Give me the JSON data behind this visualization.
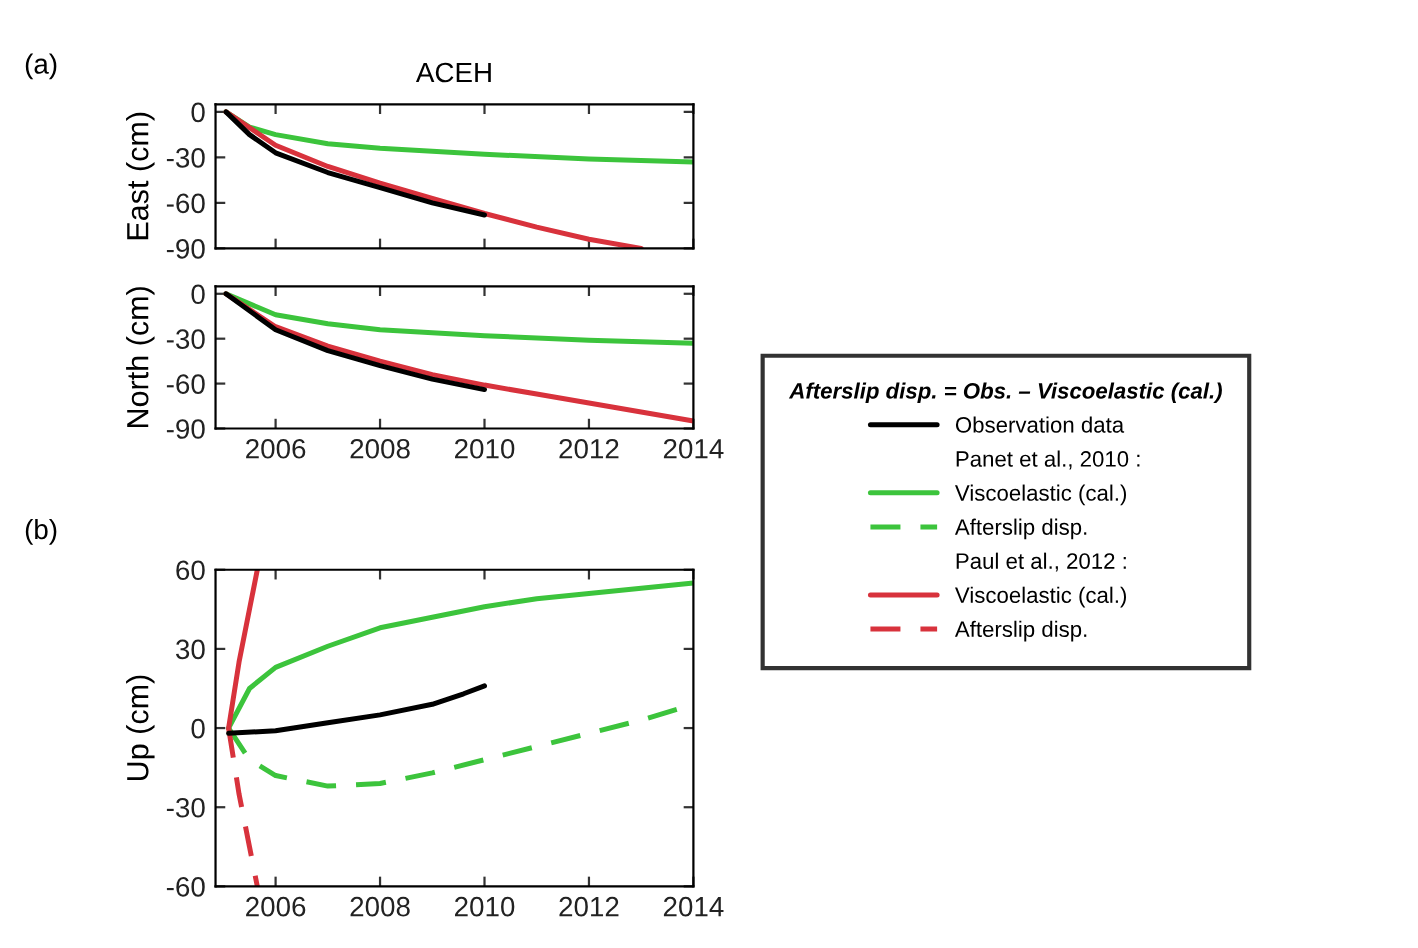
{
  "chart_data": [
    {
      "type": "line",
      "title": "ACEH",
      "ylabel": "East (cm)",
      "annotations": [
        "(a)"
      ],
      "xlim": [
        2004.85,
        2014
      ],
      "xticks": [
        2006,
        2008,
        2010,
        2012,
        2014
      ],
      "ylim": [
        -90,
        5
      ],
      "yticks": [
        -90,
        -60,
        -30,
        0
      ],
      "tick_labels": "y",
      "grid": false,
      "legend": false,
      "series": [
        {
          "color": "#000000",
          "line_style": "solid",
          "x": [
            2005.05,
            2005.5,
            2006,
            2007,
            2008,
            2009,
            2010
          ],
          "values": [
            0,
            -15,
            -27,
            -40,
            -50,
            -60,
            -68
          ]
        },
        {
          "color": "#3cc43c",
          "line_style": "solid",
          "x": [
            2005.05,
            2005.5,
            2006,
            2007,
            2008,
            2010,
            2012,
            2014
          ],
          "values": [
            0,
            -10,
            -15,
            -21,
            -24,
            -28,
            -31,
            -33
          ]
        },
        {
          "color": "#d8323c",
          "line_style": "solid",
          "x": [
            2005.05,
            2006,
            2007,
            2008,
            2009,
            2010,
            2011,
            2012,
            2013
          ],
          "values": [
            0,
            -22,
            -36,
            -47,
            -57,
            -67,
            -76,
            -84,
            -90
          ]
        }
      ]
    },
    {
      "type": "line",
      "ylabel": "North (cm)",
      "xlim": [
        2004.85,
        2014
      ],
      "xticks": [
        2006,
        2008,
        2010,
        2012,
        2014
      ],
      "ylim": [
        -90,
        5
      ],
      "yticks": [
        -90,
        -60,
        -30,
        0
      ],
      "grid": false,
      "legend": false,
      "series": [
        {
          "color": "#000000",
          "line_style": "solid",
          "x": [
            2005.05,
            2006,
            2007,
            2008,
            2009,
            2010
          ],
          "values": [
            0,
            -24,
            -38,
            -48,
            -57,
            -64
          ]
        },
        {
          "color": "#3cc43c",
          "line_style": "solid",
          "x": [
            2005.05,
            2006,
            2007,
            2008,
            2010,
            2012,
            2014
          ],
          "values": [
            0,
            -14,
            -20,
            -24,
            -28,
            -31,
            -33
          ]
        },
        {
          "color": "#d8323c",
          "line_style": "solid",
          "x": [
            2005.05,
            2006,
            2007,
            2008,
            2009,
            2010,
            2011,
            2012,
            2013,
            2014
          ],
          "values": [
            0,
            -22,
            -35,
            -45,
            -54,
            -61,
            -67,
            -73,
            -79,
            -85
          ]
        }
      ]
    },
    {
      "type": "line",
      "ylabel": "Up (cm)",
      "annotations": [
        "(b)",
        "Panet et al., 2010 :",
        "Paul et al., 2012 :"
      ],
      "legend_title": "Afterslip disp. = Obs. – Viscoelastic (cal.)",
      "xlim": [
        2004.85,
        2014
      ],
      "xticks": [
        2006,
        2008,
        2010,
        2012,
        2014
      ],
      "ylim": [
        -60,
        60
      ],
      "yticks": [
        -60,
        -30,
        0,
        30,
        60
      ],
      "grid": false,
      "legend": "right",
      "series": [
        {
          "name": "Observation data",
          "color": "#000000",
          "line_style": "solid",
          "x": [
            2005.1,
            2006,
            2007,
            2008,
            2009,
            2009.6,
            2010
          ],
          "values": [
            -2,
            -1,
            2,
            5,
            9,
            13,
            16
          ]
        },
        {
          "name": "Viscoelastic (cal.)",
          "color": "#3cc43c",
          "line_style": "solid",
          "x": [
            2005.1,
            2005.5,
            2006,
            2007,
            2008,
            2009,
            2010,
            2011,
            2012,
            2013,
            2014
          ],
          "values": [
            0,
            15,
            23,
            31,
            38,
            42,
            46,
            49,
            51,
            53,
            55
          ]
        },
        {
          "name": "Afterslip disp.",
          "color": "#3cc43c",
          "line_style": "dashed",
          "x": [
            2005.1,
            2005.5,
            2006,
            2007,
            2008,
            2009,
            2010,
            2011,
            2012,
            2013,
            2014
          ],
          "values": [
            0,
            -12,
            -18,
            -22,
            -21,
            -17,
            -12,
            -7,
            -2,
            3,
            9
          ]
        },
        {
          "name": "Viscoelastic (cal.)",
          "color": "#d8323c",
          "line_style": "solid",
          "x": [
            2005.1,
            2005.3,
            2005.5,
            2005.65
          ],
          "values": [
            0,
            25,
            45,
            60
          ]
        },
        {
          "name": "Afterslip disp.",
          "color": "#d8323c",
          "line_style": "dashed",
          "x": [
            2005.1,
            2005.3,
            2005.5,
            2005.65
          ],
          "values": [
            0,
            -25,
            -45,
            -60
          ]
        }
      ]
    }
  ]
}
